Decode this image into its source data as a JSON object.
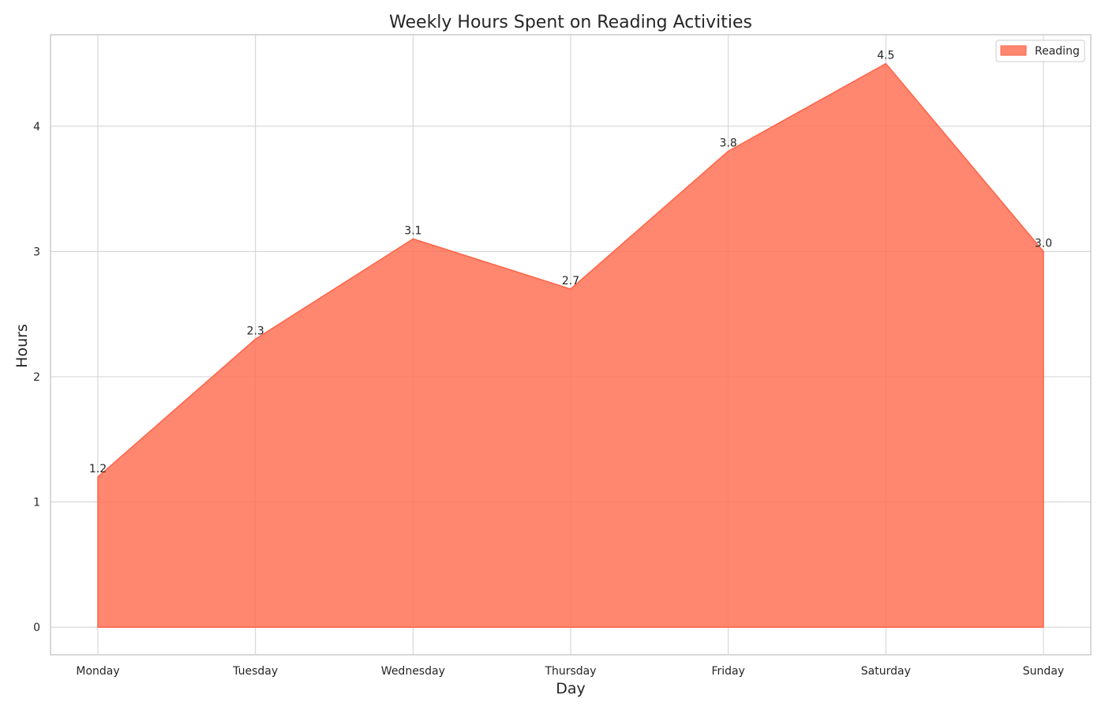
{
  "chart_data": {
    "type": "area",
    "title": "Weekly Hours Spent on Reading Activities",
    "xlabel": "Day",
    "ylabel": "Hours",
    "categories": [
      "Monday",
      "Tuesday",
      "Wednesday",
      "Thursday",
      "Friday",
      "Saturday",
      "Sunday"
    ],
    "series": [
      {
        "name": "Reading",
        "values": [
          1.2,
          2.3,
          3.1,
          2.7,
          3.8,
          4.5,
          3.0
        ],
        "color": "#ff7256"
      }
    ],
    "data_labels": [
      "1.2",
      "2.3",
      "3.1",
      "2.7",
      "3.8",
      "4.5",
      "3.0"
    ],
    "y_ticks": [
      0,
      1,
      2,
      3,
      4
    ],
    "ylim": [
      -0.22,
      4.73
    ],
    "grid": true,
    "legend_position": "top-right"
  },
  "colors": {
    "area": "#ff7256",
    "area_edge": "#ff6347",
    "grid": "#d0d0d0",
    "axis": "#cccccc",
    "text": "#262626"
  }
}
